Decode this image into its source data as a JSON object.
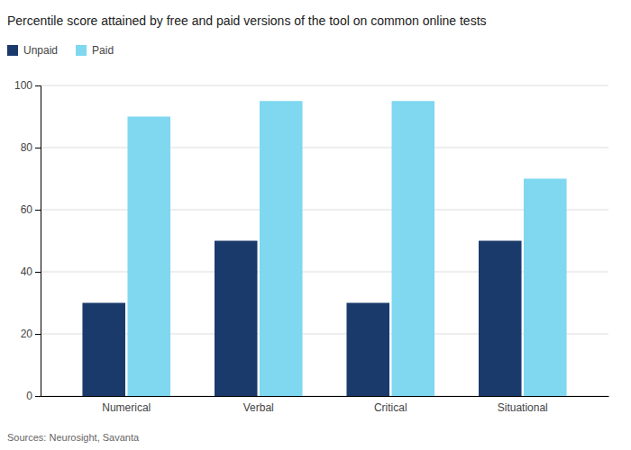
{
  "chart_data": {
    "type": "bar",
    "title": "Percentile score attained by free and paid versions of the tool on common online tests",
    "categories": [
      "Numerical",
      "Verbal",
      "Critical",
      "Situational"
    ],
    "series": [
      {
        "name": "Unpaid",
        "color": "#1a3a6b",
        "values": [
          30,
          50,
          30,
          50
        ]
      },
      {
        "name": "Paid",
        "color": "#7fd7f0",
        "values": [
          90,
          95,
          95,
          70
        ]
      }
    ],
    "ylim": [
      0,
      100
    ],
    "yticks": [
      0,
      20,
      40,
      60,
      80,
      100
    ],
    "grid": true,
    "legend": "top-left",
    "annotations": [
      "Sources: Neurosight, Savanta"
    ]
  }
}
